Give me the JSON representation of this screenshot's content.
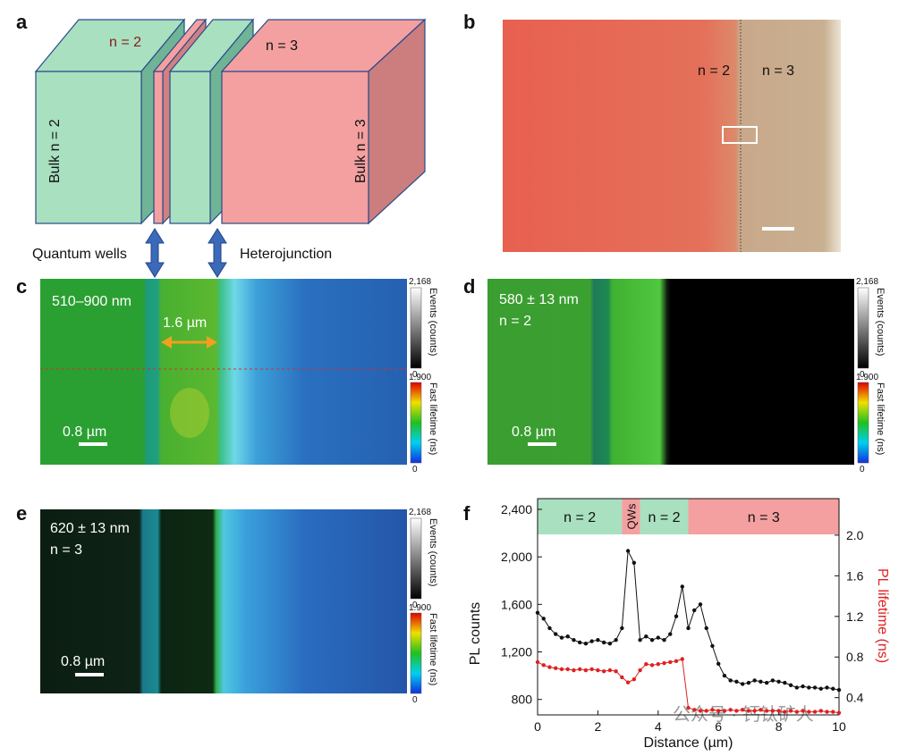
{
  "panel_a": {
    "label": "a",
    "top_left": "n = 2",
    "top_right": "n = 3",
    "bulk_left": "Bulk n = 2",
    "bulk_right": "Bulk n = 3",
    "quantum_wells": "Quantum wells",
    "heterojunction": "Heterojunction"
  },
  "panel_b": {
    "label": "b",
    "left": "n = 2",
    "right": "n = 3"
  },
  "panel_c": {
    "label": "c",
    "wavelength": "510–900 nm",
    "width": "1.6 µm",
    "scale": "0.8 µm",
    "events_max": "2,168",
    "events_min": "0",
    "events_title": "Events (counts)",
    "lifetime_max": "1.900",
    "lifetime_min": "0",
    "lifetime_title": "Fast lifetime (ns)"
  },
  "panel_d": {
    "label": "d",
    "wavelength": "580 ± 13 nm",
    "phase": "n = 2",
    "scale": "0.8 µm",
    "events_max": "2,168",
    "events_min": "0",
    "events_title": "Events (counts)",
    "lifetime_max": "1.900",
    "lifetime_min": "0",
    "lifetime_title": "Fast lifetime (ns)"
  },
  "panel_e": {
    "label": "e",
    "wavelength": "620 ± 13 nm",
    "phase": "n = 3",
    "scale": "0.8 µm",
    "events_max": "2,168",
    "events_min": "0",
    "events_title": "Events (counts)",
    "lifetime_max": "1.900",
    "lifetime_min": "0",
    "lifetime_title": "Fast lifetime (ns)"
  },
  "watermark": "公众号 · 钙钛矿人",
  "chart_data": {
    "type": "line",
    "panel_label": "f",
    "xlabel": "Distance (µm)",
    "ylabel": "PL counts",
    "y2label": "PL lifetime (ns)",
    "xlim": [
      0,
      10
    ],
    "xticks": [
      0,
      2,
      4,
      6,
      8,
      10
    ],
    "ylim": [
      670,
      2490
    ],
    "yticks": [
      800,
      {
        "value": 1200,
        "label": "1,200"
      },
      {
        "value": 1600,
        "label": "1,600"
      },
      {
        "value": 2000,
        "label": "2,000"
      },
      {
        "value": 2400,
        "label": "2,400"
      }
    ],
    "y2lim": [
      0.23,
      2.36
    ],
    "y2ticks": [
      0.4,
      0.8,
      1.2,
      1.6,
      {
        "value": 2,
        "label": "2.0"
      }
    ],
    "regions": [
      {
        "label": "n = 2",
        "start": 0,
        "end": 2.8,
        "color": "#a8e0c0"
      },
      {
        "label": "QWs",
        "start": 2.8,
        "end": 3.4,
        "color": "#f4a0a0"
      },
      {
        "label": "n = 2",
        "start": 3.4,
        "end": 5.0,
        "color": "#a8e0c0"
      },
      {
        "label": "n = 3",
        "start": 5.0,
        "end": 10,
        "color": "#f4a0a0"
      }
    ],
    "x": [
      0,
      0.2,
      0.4,
      0.6,
      0.8,
      1.0,
      1.2,
      1.4,
      1.6,
      1.8,
      2.0,
      2.2,
      2.4,
      2.6,
      2.8,
      3.0,
      3.2,
      3.4,
      3.6,
      3.8,
      4.0,
      4.2,
      4.4,
      4.6,
      4.8,
      5.0,
      5.2,
      5.4,
      5.6,
      5.8,
      6.0,
      6.2,
      6.4,
      6.6,
      6.8,
      7.0,
      7.2,
      7.4,
      7.6,
      7.8,
      8.0,
      8.2,
      8.4,
      8.6,
      8.8,
      9.0,
      9.2,
      9.4,
      9.6,
      9.8,
      10.0
    ],
    "series": [
      {
        "name": "PL counts",
        "color": "#111111",
        "values": [
          1530,
          1480,
          1400,
          1350,
          1320,
          1330,
          1300,
          1280,
          1270,
          1290,
          1300,
          1280,
          1270,
          1300,
          1400,
          2050,
          1950,
          1300,
          1330,
          1300,
          1320,
          1300,
          1350,
          1500,
          1750,
          1400,
          1550,
          1600,
          1400,
          1250,
          1100,
          1000,
          960,
          950,
          930,
          940,
          960,
          950,
          940,
          960,
          950,
          940,
          920,
          900,
          910,
          900,
          900,
          890,
          900,
          890,
          880
        ]
      },
      {
        "name": "PL lifetime",
        "color": "#e02020",
        "axis": "y2",
        "values": [
          0.75,
          0.72,
          0.7,
          0.69,
          0.68,
          0.68,
          0.67,
          0.68,
          0.67,
          0.68,
          0.67,
          0.66,
          0.67,
          0.66,
          0.6,
          0.55,
          0.58,
          0.67,
          0.73,
          0.72,
          0.73,
          0.74,
          0.75,
          0.76,
          0.78,
          0.3,
          0.28,
          0.27,
          0.27,
          0.28,
          0.27,
          0.27,
          0.28,
          0.27,
          0.28,
          0.27,
          0.27,
          0.28,
          0.27,
          0.27,
          0.27,
          0.26,
          0.27,
          0.26,
          0.27,
          0.26,
          0.26,
          0.27,
          0.26,
          0.26,
          0.25
        ]
      }
    ]
  }
}
